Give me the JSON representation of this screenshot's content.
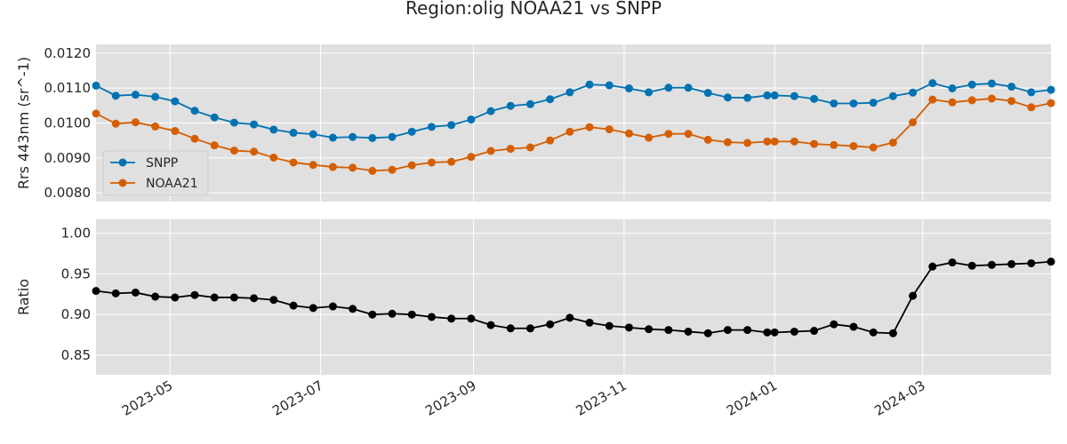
{
  "chart_data": {
    "title": "Region:olig NOAA21 vs SNPP",
    "x_dates": [
      "2023-04-01",
      "2023-04-09",
      "2023-04-17",
      "2023-04-25",
      "2023-05-03",
      "2023-05-11",
      "2023-05-19",
      "2023-05-27",
      "2023-06-04",
      "2023-06-12",
      "2023-06-20",
      "2023-06-28",
      "2023-07-06",
      "2023-07-14",
      "2023-07-22",
      "2023-07-30",
      "2023-08-07",
      "2023-08-15",
      "2023-08-23",
      "2023-08-31",
      "2023-09-08",
      "2023-09-16",
      "2023-09-24",
      "2023-10-02",
      "2023-10-10",
      "2023-10-18",
      "2023-10-26",
      "2023-11-03",
      "2023-11-11",
      "2023-11-19",
      "2023-11-27",
      "2023-12-05",
      "2023-12-13",
      "2023-12-21",
      "2023-12-29",
      "2024-01-01",
      "2024-01-09",
      "2024-01-17",
      "2024-01-25",
      "2024-02-02",
      "2024-02-10",
      "2024-02-18",
      "2024-02-26",
      "2024-03-05",
      "2024-03-13",
      "2024-03-21",
      "2024-03-29",
      "2024-04-06",
      "2024-04-14",
      "2024-04-22"
    ],
    "xlim": [
      "2023-04-01",
      "2024-04-22"
    ],
    "xticks": [
      "2023-05",
      "2023-07",
      "2023-09",
      "2023-11",
      "2024-01",
      "2024-03"
    ],
    "panels": [
      {
        "type": "line",
        "ylabel": "Rrs 443nm (sr^-1)",
        "ylim": [
          0.00775,
          0.01225
        ],
        "yticks": [
          "0.0080",
          "0.0090",
          "0.0100",
          "0.0110",
          "0.0120"
        ],
        "grid": true,
        "legend_position": "lower-left",
        "series": [
          {
            "name": "SNPP",
            "color": "#0072b2",
            "values": [
              0.01107,
              0.01078,
              0.01081,
              0.01075,
              0.01062,
              0.01035,
              0.01016,
              0.01001,
              0.00996,
              0.00981,
              0.00972,
              0.00968,
              0.00958,
              0.0096,
              0.00957,
              0.0096,
              0.00975,
              0.00989,
              0.00994,
              0.0101,
              0.01034,
              0.01049,
              0.01054,
              0.01068,
              0.01088,
              0.0111,
              0.01108,
              0.01099,
              0.01088,
              0.01101,
              0.01101,
              0.01086,
              0.01073,
              0.01072,
              0.01079,
              0.01079,
              0.01077,
              0.01069,
              0.01056,
              0.01056,
              0.01058,
              0.01077,
              0.01087,
              0.01114,
              0.01099,
              0.0111,
              0.01113,
              0.01104,
              0.01088,
              0.01095
            ]
          },
          {
            "name": "NOAA21",
            "color": "#d55e00",
            "values": [
              0.01027,
              0.00998,
              0.01002,
              0.0099,
              0.00977,
              0.00955,
              0.00936,
              0.00921,
              0.00918,
              0.00901,
              0.00887,
              0.0088,
              0.00874,
              0.00872,
              0.00863,
              0.00866,
              0.00879,
              0.00887,
              0.00889,
              0.00903,
              0.0092,
              0.00926,
              0.0093,
              0.0095,
              0.00975,
              0.00988,
              0.00982,
              0.0097,
              0.00958,
              0.00969,
              0.00969,
              0.00952,
              0.00945,
              0.00943,
              0.00947,
              0.00947,
              0.00947,
              0.0094,
              0.00937,
              0.00934,
              0.0093,
              0.00944,
              0.01002,
              0.01067,
              0.01059,
              0.01065,
              0.0107,
              0.01063,
              0.01045,
              0.01057
            ]
          }
        ]
      },
      {
        "type": "line",
        "ylabel": "Ratio",
        "ylim": [
          0.826,
          1.017
        ],
        "yticks": [
          "0.85",
          "0.90",
          "0.95",
          "1.00"
        ],
        "grid": true,
        "series": [
          {
            "name": "",
            "color": "#000000",
            "values": [
              0.929,
              0.926,
              0.927,
              0.922,
              0.921,
              0.924,
              0.921,
              0.921,
              0.92,
              0.918,
              0.911,
              0.908,
              0.91,
              0.907,
              0.9,
              0.901,
              0.9,
              0.897,
              0.895,
              0.895,
              0.887,
              0.883,
              0.883,
              0.888,
              0.896,
              0.89,
              0.886,
              0.884,
              0.882,
              0.881,
              0.879,
              0.877,
              0.881,
              0.881,
              0.878,
              0.878,
              0.879,
              0.88,
              0.888,
              0.885,
              0.878,
              0.877,
              0.923,
              0.959,
              0.964,
              0.96,
              0.961,
              0.962,
              0.963,
              0.965
            ]
          }
        ]
      }
    ]
  }
}
